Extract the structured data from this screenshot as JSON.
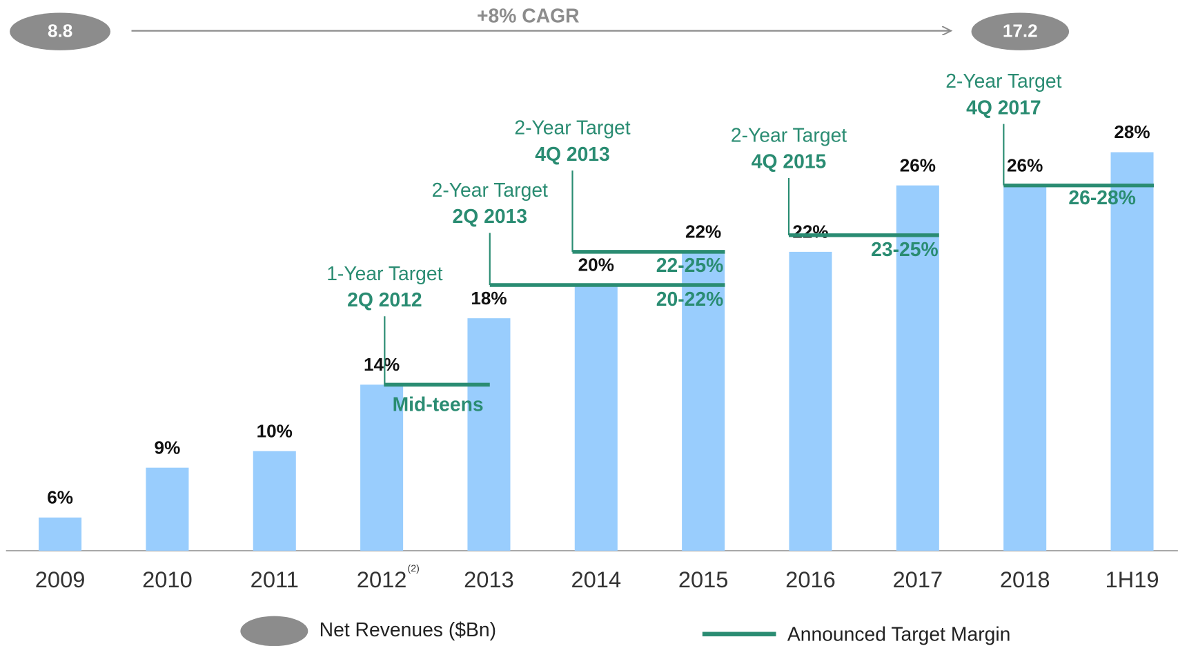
{
  "chart_data": {
    "type": "bar",
    "categories": [
      "2009",
      "2010",
      "2011",
      "2012",
      "2013",
      "2014",
      "2015",
      "2016",
      "2017",
      "2018",
      "1H19"
    ],
    "category_notes": [
      null,
      null,
      null,
      "(2)",
      null,
      null,
      null,
      null,
      null,
      null,
      null
    ],
    "values": [
      6,
      9,
      10,
      14,
      18,
      20,
      22,
      22,
      26,
      26,
      28
    ],
    "value_labels": [
      "6%",
      "9%",
      "10%",
      "14%",
      "18%",
      "20%",
      "22%",
      "22%",
      "26%",
      "26%",
      "28%"
    ],
    "color": "#99cdfd",
    "ylim": [
      4,
      30
    ],
    "growth": {
      "label": "+8% CAGR",
      "start_value": 8.8,
      "end_value": 17.2,
      "color": "#8c8c8c"
    },
    "target_color": "#2a8c72",
    "targets": [
      {
        "title": "1-Year Target",
        "period": "2Q 2012",
        "range": "Mid-teens",
        "value": 14
      },
      {
        "title": "2-Year Target",
        "period": "2Q 2013",
        "range": "20-22%",
        "value": 20
      },
      {
        "title": "2-Year Target",
        "period": "4Q 2013",
        "range": "22-25%",
        "value": 22
      },
      {
        "title": "2-Year Target",
        "period": "4Q 2015",
        "range": "23-25%",
        "value": 23
      },
      {
        "title": "2-Year Target",
        "period": "4Q 2017",
        "range": "26-28%",
        "value": 26
      }
    ],
    "legend": {
      "bubble": "Net Revenues ($Bn)",
      "line": "Announced Target Margin"
    }
  }
}
